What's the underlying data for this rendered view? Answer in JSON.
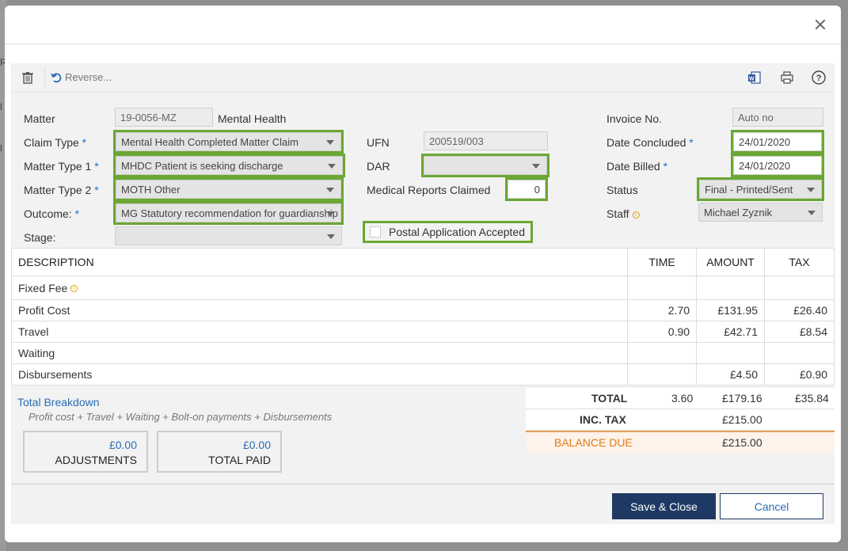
{
  "background": {
    "letters": [
      "R",
      "l",
      "l"
    ]
  },
  "toolbar": {
    "reverse_label": "Reverse..."
  },
  "form": {
    "matter_label": "Matter",
    "matter_value": "19-0056-MZ",
    "matter_desc": "Mental Health",
    "claim_type_label": "Claim Type",
    "claim_type_value": "Mental Health Completed Matter Claim",
    "matter_type1_label": "Matter Type 1",
    "matter_type1_value": "MHDC Patient is seeking discharge",
    "matter_type2_label": "Matter Type 2",
    "matter_type2_value": "MOTH Other",
    "outcome_label": "Outcome:",
    "outcome_value": "MG Statutory recommendation for guardianship",
    "stage_label": "Stage:",
    "stage_value": "",
    "ufn_label": "UFN",
    "ufn_value": "200519/003",
    "dar_label": "DAR",
    "dar_value": "",
    "medical_label": "Medical Reports Claimed",
    "medical_value": "0",
    "postal_label": "Postal Application Accepted",
    "invoice_label": "Invoice No.",
    "invoice_placeholder": "Auto no",
    "date_concluded_label": "Date Concluded",
    "date_concluded_value": "24/01/2020",
    "date_billed_label": "Date Billed",
    "date_billed_value": "24/01/2020",
    "status_label": "Status",
    "status_value": "Final - Printed/Sent",
    "staff_label": "Staff",
    "staff_value": "Michael Zyznik",
    "required_mark": "*"
  },
  "table": {
    "headers": {
      "description": "DESCRIPTION",
      "time": "TIME",
      "amount": "AMOUNT",
      "tax": "TAX"
    },
    "rows": [
      {
        "description": "Fixed Fee",
        "time": "",
        "amount": "",
        "tax": ""
      },
      {
        "description": "Profit Cost",
        "time": "2.70",
        "amount": "£131.95",
        "tax": "£26.40"
      },
      {
        "description": "Travel",
        "time": "0.90",
        "amount": "£42.71",
        "tax": "£8.54"
      },
      {
        "description": "Waiting",
        "time": "",
        "amount": "",
        "tax": ""
      },
      {
        "description": "Disbursements",
        "time": "",
        "amount": "£4.50",
        "tax": "£0.90"
      }
    ]
  },
  "breakdown": {
    "title": "Total Breakdown",
    "subtitle": "Profit cost + Travel + Waiting + Bolt-on payments + Disbursements",
    "adjustments_value": "£0.00",
    "adjustments_label": "ADJUSTMENTS",
    "paid_value": "£0.00",
    "paid_label": "TOTAL PAID"
  },
  "totals": {
    "total_label": "TOTAL",
    "total_time": "3.60",
    "total_amount": "£179.16",
    "total_tax": "£35.84",
    "inc_tax_label": "INC. TAX",
    "inc_tax_value": "£215.00",
    "balance_label": "BALANCE DUE",
    "balance_value": "£215.00"
  },
  "footer": {
    "save_label": "Save & Close",
    "cancel_label": "Cancel"
  },
  "colors": {
    "highlight": "#6aa733",
    "primary": "#1e3a64",
    "link": "#2a6db5",
    "due": "#e07b1a"
  }
}
